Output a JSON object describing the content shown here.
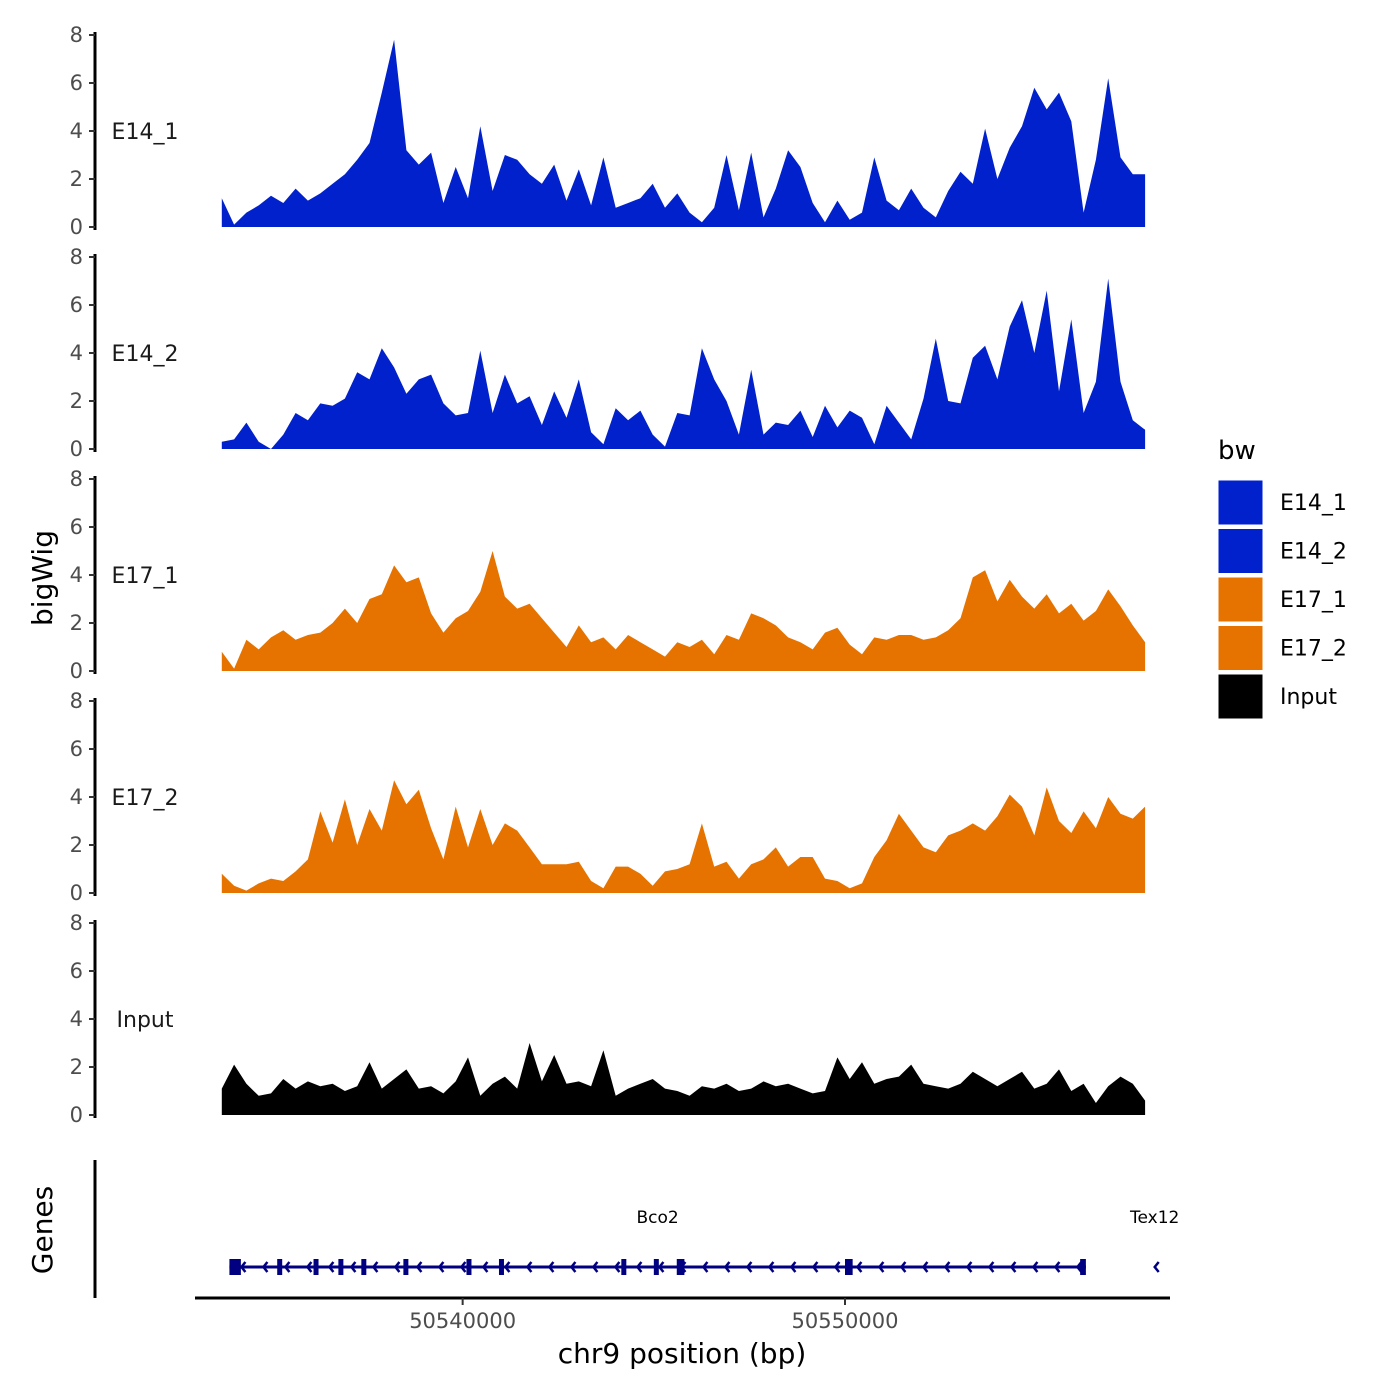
{
  "chart_data": {
    "type": "area",
    "xlabel": "chr9 position (bp)",
    "ylabel": "bigWig",
    "genes_label": "Genes",
    "xlim": [
      50533000,
      50558500
    ],
    "ylim": [
      0,
      8
    ],
    "y_ticks": [
      0,
      2,
      4,
      6,
      8
    ],
    "y_tick_labels": [
      "0",
      "2",
      "4",
      "6",
      "8"
    ],
    "x_ticks": [
      50540000,
      50550000
    ],
    "x_tick_labels": [
      "50540000",
      "50550000"
    ],
    "legend": {
      "title": "bw",
      "entries": [
        {
          "name": "E14_1",
          "color": "#0021cc"
        },
        {
          "name": "E14_2",
          "color": "#0021cc"
        },
        {
          "name": "E17_1",
          "color": "#e67300"
        },
        {
          "name": "E17_2",
          "color": "#e67300"
        },
        {
          "name": "Input",
          "color": "#000000"
        }
      ]
    },
    "x_positions": [
      50533700,
      50534022,
      50534344,
      50534666,
      50534988,
      50535310,
      50535632,
      50535954,
      50536276,
      50536598,
      50536920,
      50537242,
      50537564,
      50537886,
      50538208,
      50538530,
      50538852,
      50539174,
      50539496,
      50539818,
      50540140,
      50540462,
      50540784,
      50541106,
      50541428,
      50541750,
      50542072,
      50542394,
      50542716,
      50543038,
      50543360,
      50543682,
      50544004,
      50544326,
      50544648,
      50544970,
      50545292,
      50545614,
      50545936,
      50546258,
      50546580,
      50546902,
      50547224,
      50547546,
      50547868,
      50548190,
      50548512,
      50548834,
      50549156,
      50549478,
      50549800,
      50550122,
      50550444,
      50550766,
      50551088,
      50551410,
      50551732,
      50552054,
      50552376,
      50552698,
      50553020,
      50553342,
      50553664,
      50553986,
      50554308,
      50554630,
      50554952,
      50555274,
      50555596,
      50555918,
      50556240,
      50556562,
      50556884,
      50557206,
      50557528,
      50557850
    ],
    "series": [
      {
        "name": "E14_1",
        "color": "#0021cc",
        "values": [
          1.2,
          0.1,
          0.6,
          0.9,
          1.3,
          1.0,
          1.6,
          1.1,
          1.4,
          1.8,
          2.2,
          2.8,
          3.5,
          5.6,
          7.8,
          3.2,
          2.6,
          3.1,
          1.0,
          2.5,
          1.2,
          4.2,
          1.5,
          3.0,
          2.8,
          2.2,
          1.8,
          2.6,
          1.1,
          2.4,
          0.9,
          2.9,
          0.8,
          1.0,
          1.2,
          1.8,
          0.8,
          1.4,
          0.6,
          0.2,
          0.8,
          3.0,
          0.7,
          3.1,
          0.4,
          1.6,
          3.2,
          2.5,
          1.0,
          0.2,
          1.1,
          0.3,
          0.6,
          2.9,
          1.1,
          0.7,
          1.6,
          0.8,
          0.4,
          1.5,
          2.3,
          1.8,
          4.1,
          2.0,
          3.3,
          4.2,
          5.8,
          4.9,
          5.6,
          4.4,
          0.6,
          2.8,
          6.2,
          2.9,
          2.2,
          2.2
        ]
      },
      {
        "name": "E14_2",
        "color": "#0021cc",
        "values": [
          0.3,
          0.4,
          1.1,
          0.3,
          0.0,
          0.6,
          1.5,
          1.2,
          1.9,
          1.8,
          2.1,
          3.2,
          2.9,
          4.2,
          3.4,
          2.3,
          2.9,
          3.1,
          1.9,
          1.4,
          1.5,
          4.1,
          1.5,
          3.1,
          1.9,
          2.2,
          1.0,
          2.4,
          1.3,
          2.9,
          0.7,
          0.2,
          1.7,
          1.2,
          1.6,
          0.6,
          0.1,
          1.5,
          1.4,
          4.2,
          2.9,
          2.0,
          0.6,
          3.3,
          0.6,
          1.1,
          1.0,
          1.6,
          0.5,
          1.8,
          0.9,
          1.6,
          1.3,
          0.2,
          1.8,
          1.1,
          0.4,
          2.1,
          4.6,
          2.0,
          1.9,
          3.8,
          4.3,
          2.9,
          5.1,
          6.2,
          4.0,
          6.6,
          2.4,
          5.4,
          1.5,
          2.8,
          7.1,
          2.8,
          1.2,
          0.8
        ]
      },
      {
        "name": "E17_1",
        "color": "#e67300",
        "values": [
          0.8,
          0.1,
          1.3,
          0.9,
          1.4,
          1.7,
          1.3,
          1.5,
          1.6,
          2.0,
          2.6,
          2.0,
          3.0,
          3.2,
          4.4,
          3.7,
          3.9,
          2.4,
          1.6,
          2.2,
          2.5,
          3.3,
          5.0,
          3.1,
          2.6,
          2.8,
          2.2,
          1.6,
          1.0,
          1.9,
          1.2,
          1.4,
          0.9,
          1.5,
          1.2,
          0.9,
          0.6,
          1.2,
          1.0,
          1.3,
          0.7,
          1.5,
          1.3,
          2.4,
          2.2,
          1.9,
          1.4,
          1.2,
          0.9,
          1.6,
          1.8,
          1.1,
          0.7,
          1.4,
          1.3,
          1.5,
          1.5,
          1.3,
          1.4,
          1.7,
          2.2,
          3.9,
          4.2,
          2.9,
          3.8,
          3.1,
          2.6,
          3.2,
          2.4,
          2.8,
          2.1,
          2.5,
          3.4,
          2.7,
          1.9,
          1.2
        ]
      },
      {
        "name": "E17_2",
        "color": "#e67300",
        "values": [
          0.8,
          0.3,
          0.1,
          0.4,
          0.6,
          0.5,
          0.9,
          1.4,
          3.4,
          2.1,
          3.9,
          2.0,
          3.5,
          2.6,
          4.7,
          3.7,
          4.3,
          2.7,
          1.4,
          3.6,
          1.9,
          3.5,
          2.0,
          2.9,
          2.6,
          1.9,
          1.2,
          1.2,
          1.2,
          1.3,
          0.5,
          0.2,
          1.1,
          1.1,
          0.8,
          0.3,
          0.9,
          1.0,
          1.2,
          2.9,
          1.1,
          1.3,
          0.6,
          1.2,
          1.4,
          1.9,
          1.1,
          1.5,
          1.5,
          0.6,
          0.5,
          0.2,
          0.4,
          1.5,
          2.2,
          3.3,
          2.6,
          1.9,
          1.7,
          2.4,
          2.6,
          2.9,
          2.6,
          3.2,
          4.1,
          3.6,
          2.4,
          4.4,
          3.0,
          2.5,
          3.4,
          2.7,
          4.0,
          3.3,
          3.1,
          3.6
        ]
      },
      {
        "name": "Input",
        "color": "#000000",
        "values": [
          1.1,
          2.1,
          1.3,
          0.8,
          0.9,
          1.5,
          1.1,
          1.4,
          1.2,
          1.3,
          1.0,
          1.2,
          2.2,
          1.1,
          1.5,
          1.9,
          1.1,
          1.2,
          0.9,
          1.4,
          2.4,
          0.8,
          1.3,
          1.6,
          1.1,
          3.0,
          1.4,
          2.5,
          1.3,
          1.4,
          1.2,
          2.7,
          0.8,
          1.1,
          1.3,
          1.5,
          1.1,
          1.0,
          0.8,
          1.2,
          1.1,
          1.3,
          1.0,
          1.1,
          1.4,
          1.2,
          1.3,
          1.1,
          0.9,
          1.0,
          2.4,
          1.5,
          2.2,
          1.3,
          1.5,
          1.6,
          2.1,
          1.3,
          1.2,
          1.1,
          1.3,
          1.8,
          1.5,
          1.2,
          1.5,
          1.8,
          1.1,
          1.3,
          1.9,
          1.0,
          1.3,
          0.5,
          1.2,
          1.6,
          1.3,
          0.6
        ]
      }
    ],
    "genes": [
      {
        "name": "Bco2",
        "start": 50533900,
        "end": 50556300,
        "strand": "-",
        "color": "#000080",
        "exons": [
          [
            50533900,
            50534200
          ],
          [
            50535150,
            50535250
          ],
          [
            50536100,
            50536200
          ],
          [
            50536750,
            50536850
          ],
          [
            50537350,
            50537450
          ],
          [
            50538450,
            50538550
          ],
          [
            50540100,
            50540200
          ],
          [
            50540950,
            50541050
          ],
          [
            50544150,
            50544250
          ],
          [
            50545000,
            50545100
          ],
          [
            50545600,
            50545800
          ],
          [
            50550000,
            50550200
          ],
          [
            50556150,
            50556300
          ]
        ]
      },
      {
        "name": "Tex12",
        "start": 50558100,
        "end": 50558500,
        "strand": "-",
        "color": "#000080",
        "exons": []
      }
    ]
  }
}
